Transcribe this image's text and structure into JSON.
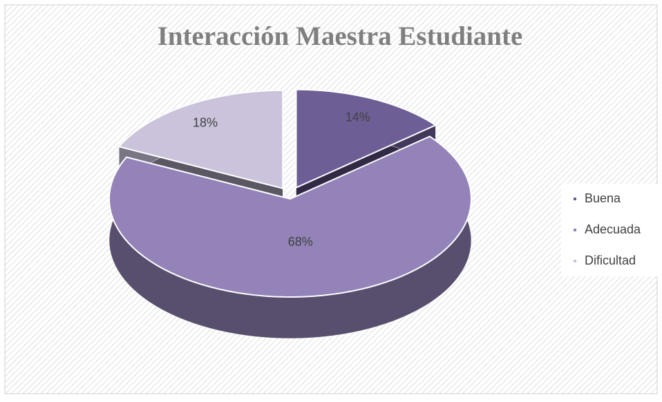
{
  "chart_data": {
    "type": "pie3d",
    "title": "Interacción Maestra Estudiante",
    "categories": [
      "Buena",
      "Adecuada",
      "Dificultad"
    ],
    "values": [
      14,
      68,
      18
    ],
    "value_labels": [
      "14%",
      "68%",
      "18%"
    ],
    "colors": [
      "#6e5e96",
      "#9383b8",
      "#cbc3dc"
    ],
    "legend": "right"
  }
}
